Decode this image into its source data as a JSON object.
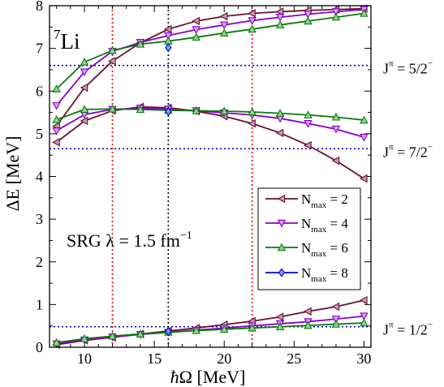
{
  "chart_data": {
    "type": "line",
    "nucleus": {
      "mass": "7",
      "symbol": "Li"
    },
    "xlabel": {
      "hbar": "ħ",
      "text": "Ω [MeV]"
    },
    "ylabel": "ΔE [MeV]",
    "xlim": [
      7.5,
      30.5
    ],
    "ylim": [
      0,
      8
    ],
    "xticks": [
      10,
      15,
      20,
      25,
      30
    ],
    "yticks": [
      0,
      1,
      2,
      3,
      4,
      5,
      6,
      7,
      8
    ],
    "grid": false,
    "srg_label": {
      "prefix": "SRG λ = 1.5 fm",
      "exponent": "−1"
    },
    "legend": {
      "placement": "right-middle",
      "entries": [
        {
          "base": "N",
          "sub": "max",
          "value": " = 2"
        },
        {
          "base": "N",
          "sub": "max",
          "value": " = 4"
        },
        {
          "base": "N",
          "sub": "max",
          "value": " = 6"
        },
        {
          "base": "N",
          "sub": "max",
          "value": " = 8"
        }
      ]
    },
    "reference_lines": {
      "horizontal": [
        {
          "y": 6.6,
          "base": "J",
          "sup": "π",
          "value": " = 5/2",
          "sup2": "−"
        },
        {
          "y": 4.65,
          "base": "J",
          "sup": "π",
          "value": " = 7/2",
          "sup2": "−"
        },
        {
          "y": 0.48,
          "base": "J",
          "sup": "π",
          "value": " = 1/2",
          "sup2": "−"
        }
      ],
      "vertical": [
        {
          "x": 12,
          "color": "#dd0000"
        },
        {
          "x": 16,
          "color": "#000000"
        },
        {
          "x": 22,
          "color": "#dd0000"
        }
      ],
      "horizontal_color": "#0000cc"
    },
    "series": [
      {
        "name": "Nmax = 2",
        "color": "#6b0f2e",
        "fill": "#c39bb3",
        "marker": "triangle-left",
        "state_curves": [
          {
            "x": [
              8,
              10,
              12,
              14,
              16,
              18,
              20,
              22,
              24,
              26,
              28,
              30
            ],
            "y": [
              5.18,
              6.08,
              6.7,
              7.13,
              7.45,
              7.64,
              7.75,
              7.82,
              7.86,
              7.89,
              7.91,
              7.93
            ]
          },
          {
            "x": [
              8,
              10,
              12,
              14,
              16,
              18,
              20,
              22,
              24,
              26,
              28,
              30
            ],
            "y": [
              4.8,
              5.3,
              5.54,
              5.63,
              5.61,
              5.53,
              5.41,
              5.24,
              5.02,
              4.73,
              4.37,
              3.95
            ]
          },
          {
            "x": [
              8,
              10,
              12,
              14,
              16,
              18,
              20,
              22,
              24,
              26,
              28,
              30
            ],
            "y": [
              0.06,
              0.16,
              0.23,
              0.31,
              0.38,
              0.45,
              0.53,
              0.61,
              0.71,
              0.84,
              0.95,
              1.1
            ]
          }
        ]
      },
      {
        "name": "Nmax = 4",
        "color": "#8800cc",
        "fill": "#d7a1f0",
        "marker": "triangle-down",
        "state_curves": [
          {
            "x": [
              8,
              10,
              12,
              14,
              16,
              18,
              20,
              22,
              24,
              26,
              28,
              30
            ],
            "y": [
              5.66,
              6.45,
              6.93,
              7.14,
              7.3,
              7.44,
              7.55,
              7.65,
              7.73,
              7.8,
              7.86,
              7.91
            ]
          },
          {
            "x": [
              8,
              10,
              12,
              14,
              16,
              18,
              20,
              22,
              24,
              26,
              28,
              30
            ],
            "y": [
              5.07,
              5.45,
              5.57,
              5.6,
              5.58,
              5.54,
              5.49,
              5.44,
              5.36,
              5.24,
              5.11,
              4.92
            ]
          },
          {
            "x": [
              8,
              10,
              12,
              14,
              16,
              18,
              20,
              22,
              24,
              26,
              28,
              30
            ],
            "y": [
              0.08,
              0.17,
              0.24,
              0.3,
              0.35,
              0.4,
              0.45,
              0.5,
              0.55,
              0.6,
              0.66,
              0.73
            ]
          }
        ]
      },
      {
        "name": "Nmax = 6",
        "color": "#0b7a0b",
        "fill": "#8fd88f",
        "marker": "triangle-up",
        "state_curves": [
          {
            "x": [
              8,
              10,
              12,
              14,
              16,
              18,
              20,
              22,
              24,
              26,
              28,
              30
            ],
            "y": [
              6.05,
              6.68,
              6.95,
              7.1,
              7.17,
              7.26,
              7.36,
              7.45,
              7.55,
              7.64,
              7.73,
              7.82
            ]
          },
          {
            "x": [
              8,
              10,
              12,
              14,
              16,
              18,
              20,
              22,
              24,
              26,
              28,
              30
            ],
            "y": [
              5.33,
              5.57,
              5.58,
              5.57,
              5.55,
              5.54,
              5.53,
              5.51,
              5.48,
              5.44,
              5.39,
              5.32
            ]
          },
          {
            "x": [
              8,
              10,
              12,
              14,
              16,
              18,
              20,
              22,
              24,
              26,
              28,
              30
            ],
            "y": [
              0.11,
              0.2,
              0.26,
              0.31,
              0.35,
              0.39,
              0.42,
              0.45,
              0.48,
              0.51,
              0.54,
              0.57
            ]
          }
        ]
      },
      {
        "name": "Nmax = 8",
        "color": "#0000dd",
        "fill": "#7aa0f5",
        "marker": "diamond",
        "state_curves": [
          {
            "x": [
              16
            ],
            "y": [
              7.02
            ]
          },
          {
            "x": [
              16
            ],
            "y": [
              5.52
            ]
          },
          {
            "x": [
              16
            ],
            "y": [
              0.37
            ]
          }
        ]
      }
    ]
  }
}
